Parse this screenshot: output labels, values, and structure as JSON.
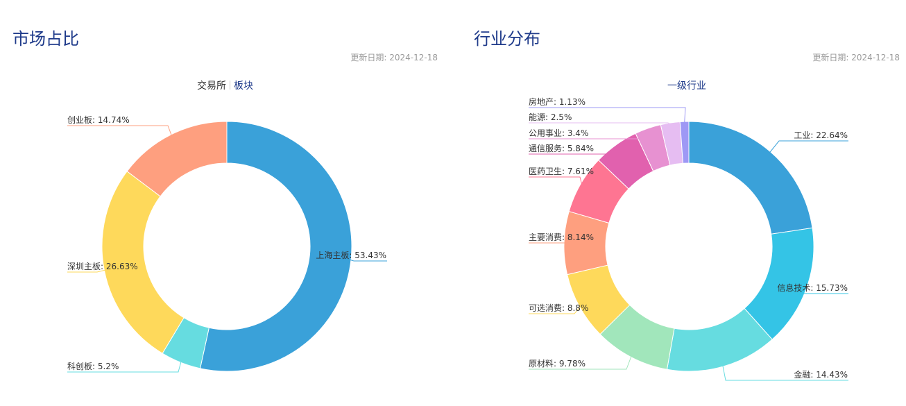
{
  "panels": [
    {
      "title": "市场占比",
      "update_label": "更新日期:",
      "update_date": "2024-12-18",
      "tabs": [
        {
          "label": "交易所",
          "active": false
        },
        {
          "label": "板块",
          "active": true
        }
      ]
    },
    {
      "title": "行业分布",
      "update_label": "更新日期:",
      "update_date": "2024-12-18",
      "tabs": [
        {
          "label": "一级行业",
          "active": true
        }
      ]
    }
  ],
  "chart_data": [
    {
      "type": "pie",
      "style": "donut",
      "slices": [
        {
          "name": "上海主板",
          "value": 53.43,
          "label": "上海主板: 53.43%",
          "color": "#3aa1d9"
        },
        {
          "name": "科创板",
          "value": 5.2,
          "label": "科创板: 5.2%",
          "color": "#66dce0"
        },
        {
          "name": "深圳主板",
          "value": 26.63,
          "label": "深圳主板: 26.63%",
          "color": "#fed95b"
        },
        {
          "name": "创业板",
          "value": 14.74,
          "label": "创业板: 14.74%",
          "color": "#fe9f7f"
        }
      ]
    },
    {
      "type": "pie",
      "style": "donut",
      "slices": [
        {
          "name": "工业",
          "value": 22.64,
          "label": "工业: 22.64%",
          "color": "#3aa1d9"
        },
        {
          "name": "信息技术",
          "value": 15.73,
          "label": "信息技术: 15.73%",
          "color": "#34c4e6"
        },
        {
          "name": "金融",
          "value": 14.43,
          "label": "金融: 14.43%",
          "color": "#66dce0"
        },
        {
          "name": "原材料",
          "value": 9.78,
          "label": "原材料: 9.78%",
          "color": "#a1e6bb"
        },
        {
          "name": "可选消费",
          "value": 8.8,
          "label": "可选消费: 8.8%",
          "color": "#fed95b"
        },
        {
          "name": "主要消费",
          "value": 8.14,
          "label": "主要消费: 8.14%",
          "color": "#fe9f7f"
        },
        {
          "name": "医药卫生",
          "value": 7.61,
          "label": "医药卫生: 7.61%",
          "color": "#fe7592"
        },
        {
          "name": "通信服务",
          "value": 5.84,
          "label": "通信服务: 5.84%",
          "color": "#e161ae"
        },
        {
          "name": "公用事业",
          "value": 3.4,
          "label": "公用事业: 3.4%",
          "color": "#e791d1"
        },
        {
          "name": "能源",
          "value": 2.5,
          "label": "能源: 2.5%",
          "color": "#e6bdf2"
        },
        {
          "name": "房地产",
          "value": 1.13,
          "label": "房地产: 1.13%",
          "color": "#9e98f5"
        }
      ]
    }
  ]
}
